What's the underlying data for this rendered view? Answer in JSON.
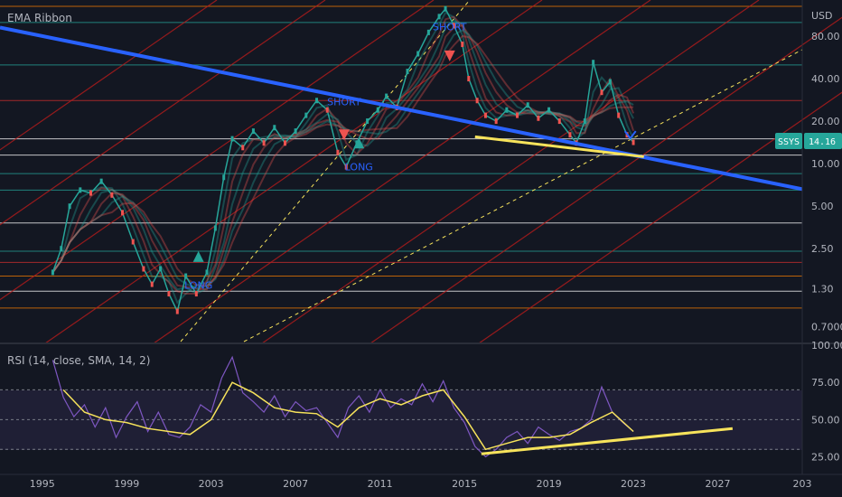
{
  "main_pane": {
    "indicator_label": "EMA Ribbon",
    "currency": "USD",
    "symbol_badge": "SSYS",
    "last_price_label": "14.16"
  },
  "rsi_pane": {
    "label": "RSI (14, close, SMA, 14, 2)"
  },
  "x_axis_labels": [
    "1995",
    "1999",
    "2003",
    "2007",
    "2011",
    "2015",
    "2019",
    "2023",
    "2027",
    "203"
  ],
  "y_axis_main_labels": [
    "80.00",
    "40.00",
    "20.00",
    "10.00",
    "5.00",
    "2.50",
    "1.30",
    "0.7000"
  ],
  "y_axis_rsi_labels": [
    "100.00",
    "75.00",
    "50.00",
    "25.00"
  ],
  "signals": [
    {
      "text": "LONG",
      "kind": "long"
    },
    {
      "text": "SHORT",
      "kind": "short"
    },
    {
      "text": "LONG",
      "kind": "long"
    },
    {
      "text": "SHORT",
      "kind": "short"
    }
  ],
  "colors": {
    "background": "#131722",
    "trendline": "#2962ff",
    "ema_up": "#26a69a",
    "ema_down": "#ef5350",
    "support_line": "#f7e35b",
    "rsi_line": "#7e57c2",
    "rsi_ma": "#f7e35b",
    "long_marker": "#26a69a",
    "short_marker": "#ef5350"
  },
  "chart_data": [
    {
      "type": "line",
      "title": "EMA Ribbon",
      "y_scale": "log",
      "y_unit": "USD",
      "ylim": [
        0.55,
        140
      ],
      "x_range": [
        1993,
        2031
      ],
      "series": [
        {
          "name": "SSYS",
          "x": [
            1995.5,
            1995.9,
            1996.3,
            1996.8,
            1997.3,
            1997.8,
            1998.3,
            1998.8,
            1999.3,
            1999.8,
            2000.2,
            2000.6,
            2001.0,
            2001.4,
            2001.8,
            2002.3,
            2002.8,
            2003.2,
            2003.6,
            2004.0,
            2004.5,
            2005.0,
            2005.5,
            2006.0,
            2006.5,
            2007.0,
            2007.5,
            2008.0,
            2008.5,
            2009.0,
            2009.4,
            2009.9,
            2010.4,
            2010.9,
            2011.3,
            2011.8,
            2012.3,
            2012.8,
            2013.3,
            2013.8,
            2014.1,
            2014.5,
            2014.9,
            2015.2,
            2015.6,
            2016.0,
            2016.5,
            2017.0,
            2017.5,
            2018.0,
            2018.5,
            2019.0,
            2019.5,
            2020.0,
            2020.3,
            2020.7,
            2021.1,
            2021.5,
            2021.9,
            2022.3,
            2022.7,
            2023.0
          ],
          "y": [
            1.7,
            2.5,
            5.0,
            6.5,
            6.2,
            7.5,
            6.0,
            4.5,
            2.8,
            1.8,
            1.4,
            1.8,
            1.2,
            0.9,
            1.6,
            1.2,
            1.7,
            3.5,
            8.0,
            15.0,
            13.0,
            17.0,
            14.0,
            18.0,
            14.0,
            17.0,
            22.0,
            28.0,
            24.0,
            12.0,
            9.5,
            14.0,
            20.0,
            24.0,
            30.0,
            25.0,
            45.0,
            60.0,
            85.0,
            110.0,
            125.0,
            95.0,
            70.0,
            40.0,
            28.0,
            22.0,
            20.0,
            24.0,
            22.0,
            26.0,
            21.0,
            24.0,
            20.0,
            16.0,
            14.0,
            20.0,
            52.0,
            32.0,
            38.0,
            22.0,
            16.0,
            14.16
          ]
        }
      ],
      "annotations": [
        "LONG",
        "SHORT",
        "LONG",
        "SHORT"
      ]
    },
    {
      "type": "line",
      "title": "RSI (14, close, SMA, 14, 2)",
      "ylim": [
        15,
        100
      ],
      "x_range": [
        1993,
        2031
      ],
      "series": [
        {
          "name": "RSI",
          "x": [
            1995.5,
            1996,
            1996.5,
            1997,
            1997.5,
            1998,
            1998.5,
            1999,
            1999.5,
            2000,
            2000.5,
            2001,
            2001.5,
            2002,
            2002.5,
            2003,
            2003.5,
            2004,
            2004.5,
            2005,
            2005.5,
            2006,
            2006.5,
            2007,
            2007.5,
            2008,
            2008.5,
            2009,
            2009.5,
            2010,
            2010.5,
            2011,
            2011.5,
            2012,
            2012.5,
            2013,
            2013.5,
            2014,
            2014.5,
            2015,
            2015.5,
            2016,
            2016.5,
            2017,
            2017.5,
            2018,
            2018.5,
            2019,
            2019.5,
            2020,
            2020.5,
            2021,
            2021.5,
            2022,
            2022.5,
            2023
          ],
          "y": [
            90,
            65,
            52,
            60,
            45,
            58,
            38,
            52,
            62,
            42,
            55,
            40,
            38,
            45,
            60,
            55,
            78,
            92,
            68,
            62,
            55,
            66,
            52,
            62,
            56,
            58,
            48,
            38,
            58,
            66,
            55,
            70,
            58,
            64,
            60,
            74,
            62,
            76,
            58,
            48,
            32,
            25,
            30,
            38,
            42,
            34,
            45,
            40,
            36,
            42,
            44,
            50,
            72,
            55,
            48,
            42
          ]
        },
        {
          "name": "SMA",
          "x": [
            1996,
            1997,
            1998,
            1999,
            2000,
            2001,
            2002,
            2003,
            2004,
            2005,
            2006,
            2007,
            2008,
            2009,
            2010,
            2011,
            2012,
            2013,
            2014,
            2015,
            2016,
            2017,
            2018,
            2019,
            2020,
            2021,
            2022,
            2023
          ],
          "y": [
            70,
            55,
            50,
            48,
            44,
            42,
            40,
            50,
            75,
            68,
            58,
            55,
            54,
            45,
            58,
            64,
            60,
            66,
            70,
            52,
            30,
            34,
            38,
            38,
            40,
            48,
            55,
            42
          ]
        }
      ]
    }
  ]
}
